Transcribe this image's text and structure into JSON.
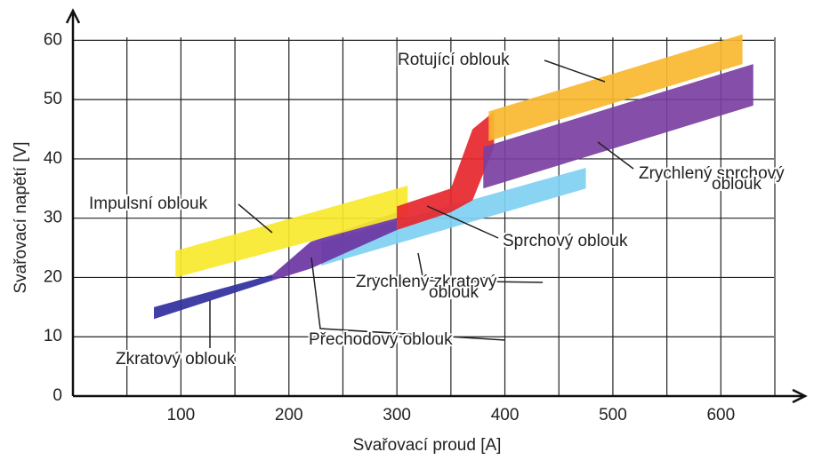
{
  "chart_data": {
    "type": "band",
    "xlabel": "Svařovací proud [A]",
    "ylabel": "Svařovací napětí [V]",
    "xlim": [
      0,
      678
    ],
    "ylim": [
      0,
      65
    ],
    "xticks": [
      100,
      200,
      300,
      400,
      500,
      600
    ],
    "xminor_ticks": [
      50,
      150,
      250,
      350,
      450,
      550,
      650
    ],
    "yticks": [
      0,
      10,
      20,
      30,
      40,
      50,
      60
    ],
    "grid": true,
    "series": [
      {
        "label_lines": [
          "Zkratový oblouk"
        ],
        "color": "#2f2f9e",
        "x": [
          75,
          185
        ],
        "lower": [
          13,
          19.5
        ],
        "upper": [
          15,
          20.5
        ]
      },
      {
        "label_lines": [
          "Zrychlený zkratový",
          "oblouk"
        ],
        "color": "#80d0f2",
        "x": [
          230,
          475
        ],
        "lower": [
          22,
          35
        ],
        "upper": [
          26,
          38.5
        ]
      },
      {
        "label_lines": [
          "Přechodový oblouk"
        ],
        "color": "#6b34a3",
        "x": [
          185,
          220,
          300
        ],
        "lower": [
          19.5,
          21.5,
          28
        ],
        "upper": [
          20.5,
          26,
          31
        ]
      },
      {
        "label_lines": [
          "Impulsní oblouk"
        ],
        "color": "#f7e92c",
        "x": [
          95,
          310
        ],
        "lower": [
          20,
          30.5
        ],
        "upper": [
          24.5,
          35.5
        ]
      },
      {
        "label_lines": [
          "Sprchový oblouk"
        ],
        "color": "#e7262e",
        "x": [
          300,
          350,
          370,
          390
        ],
        "lower": [
          28,
          31,
          33,
          42
        ],
        "upper": [
          32,
          35,
          45,
          48
        ]
      },
      {
        "label_lines": [
          "Rotující oblouk"
        ],
        "color": "#f9b82f",
        "x": [
          385,
          620
        ],
        "lower": [
          43,
          56
        ],
        "upper": [
          48,
          61
        ]
      },
      {
        "label_lines": [
          "Zrychlený sprchový",
          "oblouk"
        ],
        "color": "#7a3fa2",
        "x": [
          380,
          630
        ],
        "lower": [
          35,
          49
        ],
        "upper": [
          42,
          56
        ]
      }
    ]
  }
}
